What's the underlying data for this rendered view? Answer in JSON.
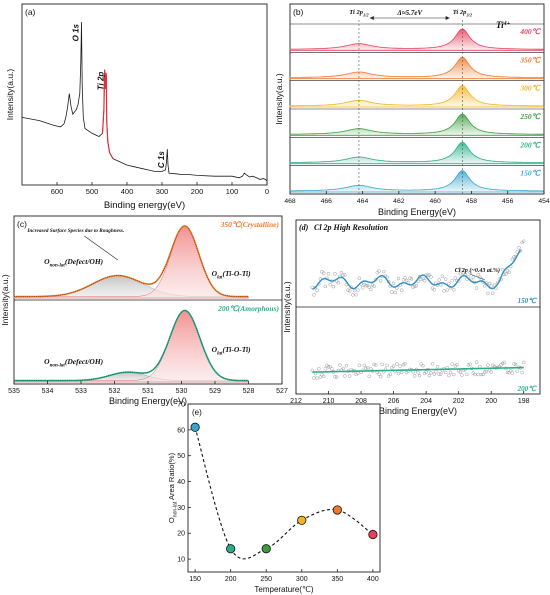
{
  "panels": [
    {
      "id": "a",
      "letter": "(a)",
      "xlabel": "Binding energy(eV)",
      "ylabel": "Intensity(a.u.)"
    },
    {
      "id": "b",
      "letter": "(b)",
      "xlabel": "Binding Energy(eV)",
      "ylabel": "Intensity(a.u.)"
    },
    {
      "id": "c",
      "letter": "(c)",
      "xlabel": "Binding Energy(eV)",
      "ylabel": "Intensity(a.u.)"
    },
    {
      "id": "d",
      "letter": "(d)",
      "title": "Cl 2p High Resolution",
      "xlabel": "Binding Energy(eV)",
      "ylabel": "Intensity(a.u.)"
    },
    {
      "id": "e",
      "letter": "(e)",
      "xlabel": "Temperature(℃)",
      "ylabel": "O_non-lat Area Ratio(%)"
    }
  ],
  "chart_data": [
    {
      "panel": "a",
      "type": "line",
      "xlabel": "Binding energy(eV)",
      "ylabel": "Intensity(a.u.)",
      "xlim": [
        700,
        0
      ],
      "x_ticks": [
        600,
        500,
        400,
        300,
        200,
        100,
        0
      ],
      "annotations": [
        {
          "text": "O 1s",
          "x": 530
        },
        {
          "text": "Ti 2p",
          "x": 459
        },
        {
          "text": "C 1s",
          "x": 285
        }
      ],
      "series": [
        {
          "values_x": [
            700,
            650,
            610,
            590,
            580,
            575,
            570,
            565,
            560,
            555,
            545,
            540,
            535,
            532,
            530,
            528,
            525,
            520,
            500,
            480,
            470,
            466,
            464,
            462,
            460,
            459,
            458,
            455,
            450,
            440,
            420,
            400,
            380,
            360,
            340,
            320,
            300,
            290,
            287,
            285,
            283,
            280,
            260,
            240,
            220,
            200,
            150,
            100,
            80,
            70,
            65,
            60,
            50,
            40,
            30,
            20,
            10,
            5,
            0
          ],
          "values_y": [
            0.4,
            0.38,
            0.35,
            0.34,
            0.36,
            0.4,
            0.46,
            0.55,
            0.47,
            0.42,
            0.45,
            0.48,
            0.55,
            0.75,
            1.0,
            0.6,
            0.4,
            0.33,
            0.3,
            0.28,
            0.3,
            0.45,
            0.7,
            0.58,
            0.68,
            0.65,
            0.38,
            0.25,
            0.18,
            0.14,
            0.12,
            0.1,
            0.09,
            0.08,
            0.07,
            0.06,
            0.06,
            0.07,
            0.12,
            0.2,
            0.1,
            0.05,
            0.045,
            0.04,
            0.04,
            0.035,
            0.03,
            0.03,
            0.02,
            0.03,
            0.05,
            0.04,
            0.025,
            0.03,
            0.02,
            0.01,
            0.015,
            0.01,
            0.0
          ]
        }
      ]
    },
    {
      "panel": "b",
      "type": "line",
      "xlabel": "Binding Energy(eV)",
      "ylabel": "Intensity(a.u.)",
      "xlim": [
        468,
        454
      ],
      "x_ticks": [
        468,
        466,
        464,
        462,
        460,
        458,
        456,
        454
      ],
      "annotations": [
        "Ti 2p1/2",
        "Ti 2p3/2",
        "Δ≈5.7eV",
        "Ti4+"
      ],
      "peaks_eV": [
        464.2,
        458.5
      ],
      "series": [
        {
          "name": "400℃",
          "color": "#e8405a"
        },
        {
          "name": "350℃",
          "color": "#f07a2c"
        },
        {
          "name": "300℃",
          "color": "#f4b322"
        },
        {
          "name": "250℃",
          "color": "#3d9e40"
        },
        {
          "name": "200℃",
          "color": "#27b088"
        },
        {
          "name": "150℃",
          "color": "#3aa6cf"
        }
      ]
    },
    {
      "panel": "c",
      "type": "area",
      "xlabel": "Binding Energy(eV)",
      "ylabel": "Intensity(a.u.)",
      "xlim": [
        535,
        527
      ],
      "x_ticks": [
        535,
        534,
        533,
        532,
        531,
        530,
        529,
        528,
        527
      ],
      "series": [
        {
          "name": "350℃(Crystalline)",
          "color": "#f07a2c",
          "O_lat_peak_eV": 529.9,
          "O_nonlat_peak_eV": 531.9
        },
        {
          "name": "200℃(Amorphous)",
          "color": "#27b088",
          "O_lat_peak_eV": 529.9,
          "O_nonlat_peak_eV": 531.6
        }
      ],
      "annotations": [
        "Increased Surface Species due to Roughness.",
        "O_non-lat(Defect/OH)",
        "O_lat(Ti-O-Ti)"
      ]
    },
    {
      "panel": "d",
      "type": "scatter",
      "title": "Cl 2p High Resolution",
      "xlabel": "Binding Energy(eV)",
      "ylabel": "Intensity(a.u.)",
      "xlim": [
        212,
        197
      ],
      "x_ticks": [
        212,
        210,
        208,
        206,
        204,
        202,
        200,
        198
      ],
      "annotations": [
        "Cl 2p (~0.43 at.%)"
      ],
      "series": [
        {
          "name": "150℃",
          "color": "#2e90c8"
        },
        {
          "name": "200℃",
          "color": "#27b088"
        }
      ]
    },
    {
      "panel": "e",
      "type": "scatter",
      "xlabel": "Temperature(℃)",
      "ylabel": "O_non-lat Area Ratio(%)",
      "xlim": [
        140,
        410
      ],
      "ylim": [
        5,
        70
      ],
      "x_ticks": [
        150,
        200,
        250,
        300,
        350,
        400
      ],
      "y_ticks": [
        10,
        20,
        30,
        40,
        50,
        60,
        70
      ],
      "x": [
        150,
        200,
        250,
        300,
        350,
        400
      ],
      "values": [
        61,
        14,
        14,
        25,
        29,
        19.5
      ],
      "colors": [
        "#3aa6cf",
        "#27b088",
        "#3d9e40",
        "#f4b322",
        "#f07a2c",
        "#e8405a"
      ]
    }
  ],
  "labels": {
    "a_o1s": "O 1s",
    "a_ti2p": "Ti 2p",
    "a_c1s": "C 1s",
    "b_ti12": "Ti 2p",
    "b_ti12_sub": "1/2",
    "b_ti32": "Ti 2p",
    "b_ti32_sub": "3/2",
    "b_delta": "Δ≈5.7eV",
    "b_ti4": "Ti",
    "b_ti4_sup": "4+",
    "c_top": "350℃(Crystalline)",
    "c_bot": "200℃(Amorphous)",
    "c_rough": "Increased Surface Species due to Roughness.",
    "c_olat": "O",
    "c_olat_sub": "lat",
    "c_olat_txt": "(Ti-O-Ti)",
    "c_onon": "O",
    "c_onon_sub": "non-lat",
    "c_onon_txt": "(Defect/OH)",
    "d_cl": "Cl 2p (~0.43 at.%)",
    "d_150": "150℃",
    "d_200": "200℃",
    "e_ylab_main": "O",
    "e_ylab_sub": "non-lat",
    "e_ylab_rest": " Area Ratio(%)"
  }
}
